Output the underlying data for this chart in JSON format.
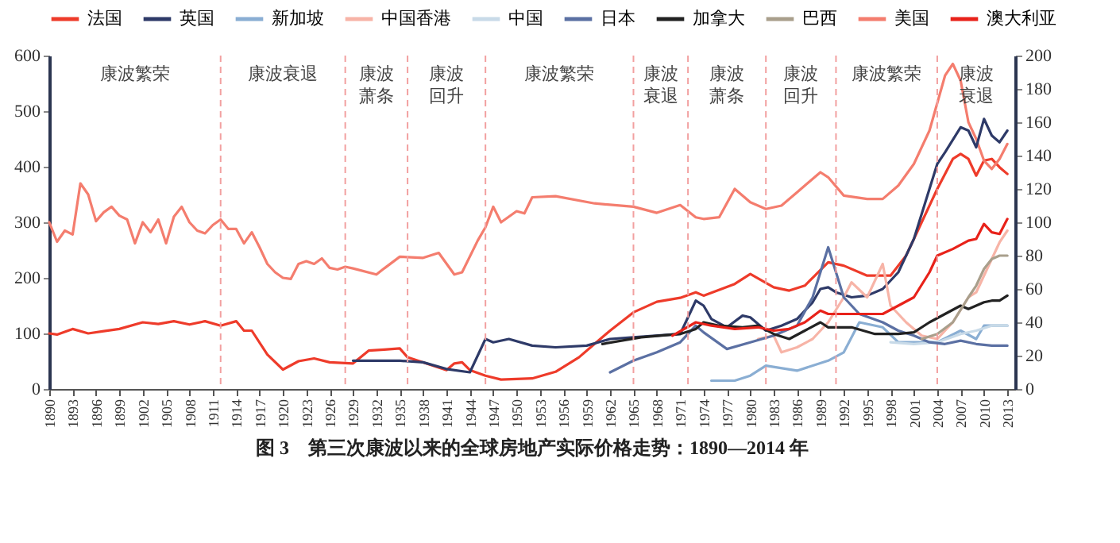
{
  "chart_data": {
    "type": "line",
    "title": "图 3　第三次康波以来的全球房地产实际价格走势：1890—2014 年",
    "xlim": [
      1890,
      2014
    ],
    "xticks": [
      1890,
      1893,
      1896,
      1899,
      1902,
      1905,
      1908,
      1911,
      1914,
      1917,
      1920,
      1923,
      1926,
      1929,
      1932,
      1935,
      1938,
      1941,
      1944,
      1947,
      1950,
      1953,
      1956,
      1959,
      1962,
      1965,
      1968,
      1971,
      1974,
      1977,
      1980,
      1983,
      1986,
      1989,
      1992,
      1995,
      1998,
      2001,
      2004,
      2007,
      2010,
      2013
    ],
    "ylim": [
      0,
      600
    ],
    "yticks": [
      0,
      100,
      200,
      300,
      400,
      500,
      600
    ],
    "y2lim": [
      0,
      200
    ],
    "y2ticks": [
      0,
      20,
      40,
      60,
      80,
      100,
      120,
      140,
      160,
      180,
      200
    ],
    "legend": "top",
    "grid": false,
    "series": [
      {
        "name": "法国",
        "color": "#ee3b2a",
        "x": [
          1890,
          1891,
          1893,
          1895,
          1897,
          1899,
          1902,
          1904,
          1906,
          1908,
          1910,
          1912,
          1914,
          1915,
          1916,
          1918,
          1920,
          1922,
          1924,
          1926,
          1929,
          1931,
          1933,
          1935,
          1936,
          1938,
          1941,
          1942,
          1943,
          1944,
          1946,
          1948,
          1952,
          1955,
          1958,
          1960,
          1962,
          1965,
          1968,
          1971,
          1973,
          1974,
          1978,
          1980,
          1983,
          1985,
          1987,
          1990,
          1992,
          1995,
          1998,
          2000,
          2002,
          2004,
          2006,
          2007,
          2008,
          2009,
          2010,
          2011,
          2012,
          2013
        ],
        "values": [
          100,
          98,
          108,
          100,
          104,
          108,
          120,
          117,
          122,
          116,
          122,
          114,
          122,
          105,
          105,
          62,
          35,
          50,
          55,
          48,
          46,
          69,
          71,
          73,
          57,
          48,
          34,
          46,
          48,
          34,
          24,
          17,
          19,
          31,
          57,
          81,
          105,
          138,
          157,
          164,
          174,
          168,
          189,
          207,
          183,
          177,
          186,
          228,
          222,
          204,
          204,
          240,
          300,
          360,
          414,
          423,
          414,
          384,
          411,
          414,
          399,
          387
        ]
      },
      {
        "name": "英国",
        "color": "#2e3a68",
        "axis": "y2",
        "x": [
          1929,
          1935,
          1938,
          1941,
          1944,
          1946,
          1947,
          1949,
          1952,
          1955,
          1959,
          1962,
          1965,
          1971,
          1973,
          1974,
          1975,
          1977,
          1979,
          1980,
          1982,
          1984,
          1986,
          1988,
          1989,
          1990,
          1991,
          1993,
          1995,
          1997,
          1999,
          2001,
          2003,
          2004,
          2005,
          2007,
          2008,
          2009,
          2010,
          2011,
          2012,
          2013
        ],
        "values": [
          17,
          17,
          16,
          12,
          10,
          30,
          28,
          30,
          26,
          25,
          26,
          30,
          31,
          33,
          53,
          50,
          42,
          37,
          44,
          43,
          35,
          38,
          42,
          52,
          60,
          61,
          58,
          55,
          56,
          60,
          70,
          90,
          120,
          135,
          142,
          157,
          155,
          145,
          162,
          152,
          148,
          155
        ]
      },
      {
        "name": "新加坡",
        "color": "#8aaed3",
        "axis": "y2",
        "x": [
          1975,
          1978,
          1980,
          1982,
          1986,
          1990,
          1992,
          1994,
          1997,
          1999,
          2001,
          2004,
          2007,
          2009,
          2010,
          2013
        ],
        "values": [
          5,
          5,
          8,
          14,
          11,
          17,
          22,
          40,
          37,
          28,
          28,
          28,
          35,
          30,
          38,
          38
        ]
      },
      {
        "name": "中国香港",
        "color": "#f7b4a7",
        "axis": "y2",
        "x": [
          1981,
          1983,
          1984,
          1986,
          1988,
          1990,
          1992,
          1993,
          1995,
          1997,
          1998,
          2000,
          2002,
          2004,
          2006,
          2008,
          2009,
          2011,
          2012,
          2013
        ],
        "values": [
          30,
          32,
          22,
          25,
          30,
          40,
          55,
          64,
          55,
          75,
          50,
          40,
          32,
          30,
          40,
          55,
          58,
          78,
          88,
          95
        ]
      },
      {
        "name": "中国",
        "color": "#c8dae8",
        "axis": "y2",
        "x": [
          1998,
          2001,
          2004,
          2007,
          2009,
          2011,
          2013
        ],
        "values": [
          28,
          27,
          28,
          33,
          35,
          38,
          38
        ]
      },
      {
        "name": "日本",
        "color": "#5b70a3",
        "axis": "y2",
        "x": [
          1962,
          1965,
          1968,
          1971,
          1973,
          1974,
          1977,
          1980,
          1983,
          1986,
          1988,
          1990,
          1991,
          1992,
          1994,
          1997,
          1999,
          2001,
          2003,
          2005,
          2007,
          2009,
          2011,
          2013
        ],
        "values": [
          10,
          17,
          22,
          28,
          38,
          34,
          24,
          28,
          32,
          38,
          55,
          85,
          70,
          55,
          45,
          40,
          35,
          32,
          28,
          27,
          29,
          27,
          26,
          26
        ]
      },
      {
        "name": "加拿大",
        "color": "#222222",
        "axis": "y2",
        "x": [
          1961,
          1966,
          1971,
          1973,
          1974,
          1976,
          1979,
          1981,
          1983,
          1985,
          1987,
          1989,
          1990,
          1993,
          1996,
          1999,
          2001,
          2003,
          2005,
          2007,
          2008,
          2010,
          2011,
          2012,
          2013
        ],
        "values": [
          27,
          31,
          33,
          36,
          40,
          38,
          37,
          38,
          33,
          30,
          35,
          40,
          37,
          37,
          33,
          33,
          34,
          40,
          45,
          50,
          48,
          52,
          53,
          53,
          56
        ]
      },
      {
        "name": "巴西",
        "color": "#a99f8c",
        "axis": "y2",
        "x": [
          2002,
          2004,
          2006,
          2008,
          2009,
          2010,
          2011,
          2012,
          2013
        ],
        "values": [
          30,
          33,
          40,
          55,
          62,
          72,
          78,
          80,
          80
        ]
      },
      {
        "name": "美国",
        "color": "#f47d6e",
        "x": [
          1890,
          1891,
          1892,
          1893,
          1894,
          1895,
          1896,
          1897,
          1898,
          1899,
          1900,
          1901,
          1902,
          1903,
          1904,
          1905,
          1906,
          1907,
          1908,
          1909,
          1910,
          1911,
          1912,
          1913,
          1914,
          1915,
          1916,
          1917,
          1918,
          1919,
          1920,
          1921,
          1922,
          1923,
          1924,
          1925,
          1926,
          1927,
          1928,
          1929,
          1932,
          1933,
          1935,
          1938,
          1940,
          1942,
          1943,
          1945,
          1946,
          1947,
          1948,
          1950,
          1951,
          1952,
          1955,
          1960,
          1965,
          1968,
          1971,
          1973,
          1974,
          1976,
          1978,
          1980,
          1982,
          1984,
          1986,
          1989,
          1990,
          1992,
          1995,
          1997,
          1999,
          2001,
          2003,
          2005,
          2006,
          2007,
          2008,
          2009,
          2010,
          2011,
          2012,
          2013
        ],
        "values": [
          300,
          265,
          285,
          278,
          370,
          350,
          302,
          318,
          328,
          312,
          305,
          262,
          300,
          282,
          305,
          262,
          310,
          328,
          300,
          285,
          280,
          295,
          305,
          288,
          288,
          262,
          282,
          255,
          225,
          210,
          200,
          198,
          225,
          230,
          225,
          235,
          218,
          215,
          220,
          217,
          206,
          217,
          238,
          236,
          245,
          206,
          210,
          267,
          291,
          328,
          300,
          320,
          316,
          345,
          347,
          334,
          328,
          317,
          331,
          309,
          306,
          309,
          360,
          336,
          324,
          330,
          354,
          390,
          381,
          348,
          342,
          342,
          366,
          405,
          465,
          564,
          585,
          555,
          480,
          450,
          411,
          396,
          414,
          441
        ]
      },
      {
        "name": "澳大利亚",
        "color": "#e8221a",
        "axis": "y2",
        "x": [
          1970,
          1973,
          1975,
          1978,
          1981,
          1983,
          1985,
          1987,
          1989,
          1990,
          1993,
          1997,
          1999,
          2001,
          2003,
          2004,
          2006,
          2008,
          2009,
          2010,
          2011,
          2012,
          2013
        ],
        "values": [
          32,
          40,
          38,
          36,
          37,
          35,
          36,
          40,
          47,
          45,
          45,
          45,
          50,
          55,
          70,
          80,
          84,
          89,
          90,
          99,
          94,
          93,
          102
        ]
      }
    ],
    "ref_lines": [
      {
        "axis": "x",
        "value": 1912,
        "color": "#f2a0a0",
        "line_style": "dashed"
      },
      {
        "axis": "x",
        "value": 1928,
        "color": "#f2a0a0",
        "line_style": "dashed"
      },
      {
        "axis": "x",
        "value": 1936,
        "color": "#f2a0a0",
        "line_style": "dashed"
      },
      {
        "axis": "x",
        "value": 1946,
        "color": "#f2a0a0",
        "line_style": "dashed"
      },
      {
        "axis": "x",
        "value": 1965,
        "color": "#f2a0a0",
        "line_style": "dashed"
      },
      {
        "axis": "x",
        "value": 1972,
        "color": "#f2a0a0",
        "line_style": "dashed"
      },
      {
        "axis": "x",
        "value": 1982,
        "color": "#f2a0a0",
        "line_style": "dashed"
      },
      {
        "axis": "x",
        "value": 1991,
        "color": "#f2a0a0",
        "line_style": "dashed"
      },
      {
        "axis": "x",
        "value": 2004,
        "color": "#f2a0a0",
        "line_style": "dashed"
      }
    ],
    "annotations": [
      "康波繁荣",
      "康波衰退",
      "康波萧条",
      "康波回升",
      "康波繁荣",
      "康波衰退",
      "康波萧条",
      "康波回升",
      "康波繁荣",
      "康波衰退"
    ]
  }
}
